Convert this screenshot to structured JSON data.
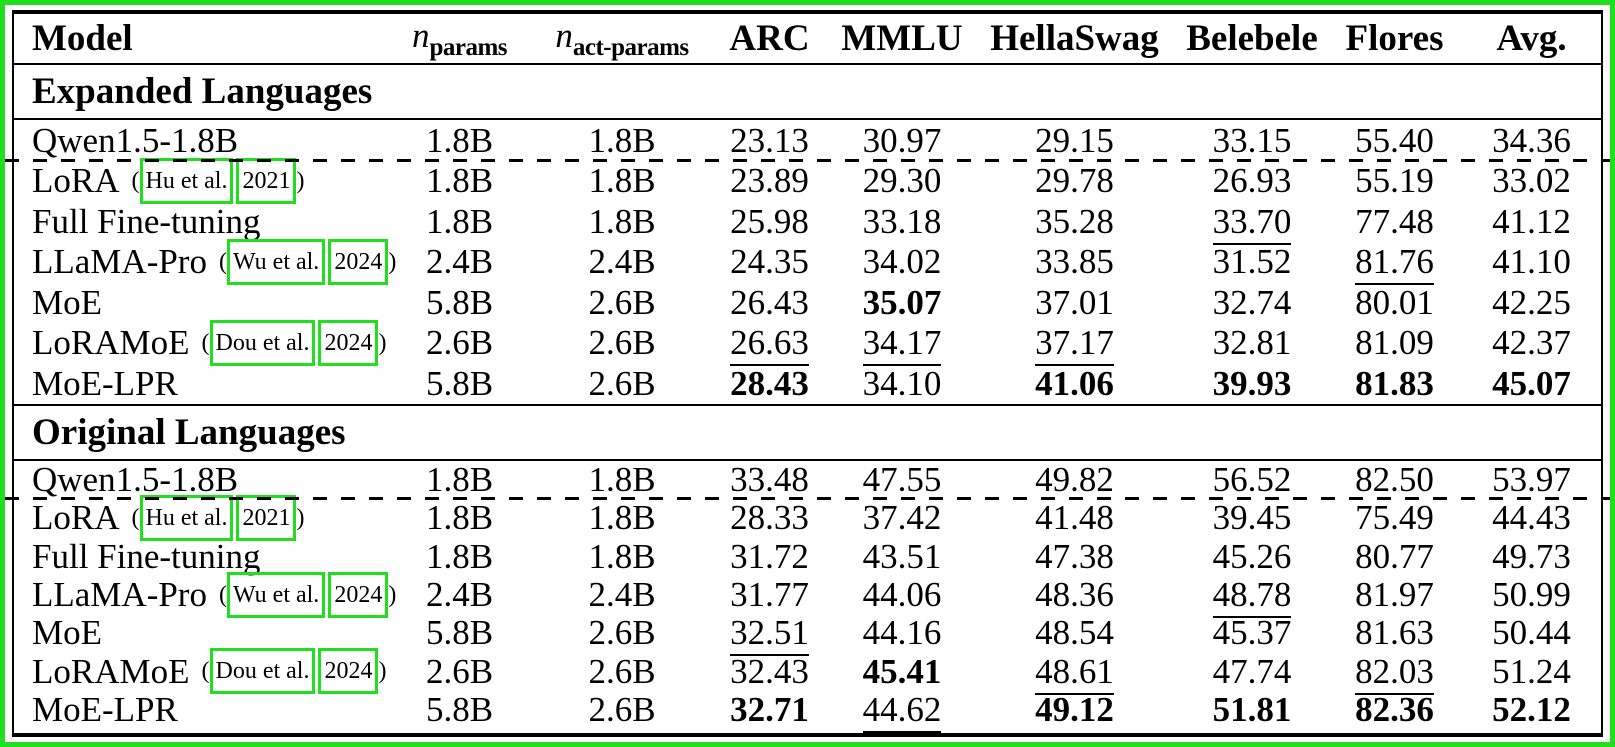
{
  "colors": {
    "annotation_green": "#1fdf1f",
    "rule_black": "#000000",
    "text_black": "#000000",
    "background_white": "#ffffff"
  },
  "table": {
    "columns": [
      {
        "key": "model",
        "label": "Model",
        "type": "text"
      },
      {
        "key": "n_params",
        "math_main": "n",
        "math_sub": "params",
        "type": "math"
      },
      {
        "key": "n_act_params",
        "math_main": "n",
        "math_sub": "act-params",
        "type": "math"
      },
      {
        "key": "arc",
        "label": "ARC",
        "type": "metric"
      },
      {
        "key": "mmlu",
        "label": "MMLU",
        "type": "metric"
      },
      {
        "key": "hellaswag",
        "label": "HellaSwag",
        "type": "metric"
      },
      {
        "key": "belebele",
        "label": "Belebele",
        "type": "metric"
      },
      {
        "key": "flores",
        "label": "Flores",
        "type": "metric"
      },
      {
        "key": "avg",
        "label": "Avg.",
        "type": "metric"
      }
    ],
    "style_legend": {
      "p": "plain",
      "b": "bold",
      "u": "underline"
    },
    "sections": [
      {
        "title": "Expanded Languages",
        "rows": [
          {
            "model": "Qwen1.5-1.8B",
            "citation": null,
            "n_params": "1.8B",
            "n_act_params": "1.8B",
            "values": [
              "23.13",
              "30.97",
              "29.15",
              "33.15",
              "55.40",
              "34.36"
            ],
            "styles": [
              "p",
              "p",
              "p",
              "p",
              "p",
              "p"
            ],
            "dashed_above": false
          },
          {
            "model": "LoRA",
            "citation": {
              "open": "(",
              "boxes": [
                "Hu et al.",
                "2021"
              ],
              "close": ")"
            },
            "n_params": "1.8B",
            "n_act_params": "1.8B",
            "values": [
              "23.89",
              "29.30",
              "29.78",
              "26.93",
              "55.19",
              "33.02"
            ],
            "styles": [
              "p",
              "p",
              "p",
              "p",
              "p",
              "p"
            ],
            "dashed_above": true
          },
          {
            "model": "Full Fine-tuning",
            "citation": null,
            "n_params": "1.8B",
            "n_act_params": "1.8B",
            "values": [
              "25.98",
              "33.18",
              "35.28",
              "33.70",
              "77.48",
              "41.12"
            ],
            "styles": [
              "p",
              "p",
              "p",
              "u",
              "p",
              "p"
            ],
            "dashed_above": false
          },
          {
            "model": "LLaMA-Pro",
            "citation": {
              "open": "(",
              "boxes": [
                "Wu et al.",
                "2024"
              ],
              "close": ")"
            },
            "n_params": "2.4B",
            "n_act_params": "2.4B",
            "values": [
              "24.35",
              "34.02",
              "33.85",
              "31.52",
              "81.76",
              "41.10"
            ],
            "styles": [
              "p",
              "p",
              "p",
              "p",
              "u",
              "p"
            ],
            "dashed_above": false
          },
          {
            "model": "MoE",
            "citation": null,
            "n_params": "5.8B",
            "n_act_params": "2.6B",
            "values": [
              "26.43",
              "35.07",
              "37.01",
              "32.74",
              "80.01",
              "42.25"
            ],
            "styles": [
              "p",
              "b",
              "p",
              "p",
              "p",
              "p"
            ],
            "dashed_above": false
          },
          {
            "model": "LoRAMoE",
            "citation": {
              "open": "(",
              "boxes": [
                "Dou et al.",
                "2024"
              ],
              "close": ")"
            },
            "n_params": "2.6B",
            "n_act_params": "2.6B",
            "values": [
              "26.63",
              "34.17",
              "37.17",
              "32.81",
              "81.09",
              "42.37"
            ],
            "styles": [
              "u",
              "u",
              "u",
              "p",
              "p",
              "p"
            ],
            "dashed_above": false
          },
          {
            "model": "MoE-LPR",
            "citation": null,
            "n_params": "5.8B",
            "n_act_params": "2.6B",
            "values": [
              "28.43",
              "34.10",
              "41.06",
              "39.93",
              "81.83",
              "45.07"
            ],
            "styles": [
              "b",
              "p",
              "b",
              "b",
              "b",
              "b"
            ],
            "dashed_above": false
          }
        ]
      },
      {
        "title": "Original Languages",
        "rows": [
          {
            "model": "Qwen1.5-1.8B",
            "citation": null,
            "n_params": "1.8B",
            "n_act_params": "1.8B",
            "values": [
              "33.48",
              "47.55",
              "49.82",
              "56.52",
              "82.50",
              "53.97"
            ],
            "styles": [
              "p",
              "p",
              "p",
              "p",
              "p",
              "p"
            ],
            "dashed_above": false
          },
          {
            "model": "LoRA",
            "citation": {
              "open": "(",
              "boxes": [
                "Hu et al.",
                "2021"
              ],
              "close": ")"
            },
            "n_params": "1.8B",
            "n_act_params": "1.8B",
            "values": [
              "28.33",
              "37.42",
              "41.48",
              "39.45",
              "75.49",
              "44.43"
            ],
            "styles": [
              "p",
              "p",
              "p",
              "p",
              "p",
              "p"
            ],
            "dashed_above": true
          },
          {
            "model": "Full Fine-tuning",
            "citation": null,
            "n_params": "1.8B",
            "n_act_params": "1.8B",
            "values": [
              "31.72",
              "43.51",
              "47.38",
              "45.26",
              "80.77",
              "49.73"
            ],
            "styles": [
              "p",
              "p",
              "p",
              "p",
              "p",
              "p"
            ],
            "dashed_above": false
          },
          {
            "model": "LLaMA-Pro",
            "citation": {
              "open": "(",
              "boxes": [
                "Wu et al.",
                "2024"
              ],
              "close": ")"
            },
            "n_params": "2.4B",
            "n_act_params": "2.4B",
            "values": [
              "31.77",
              "44.06",
              "48.36",
              "48.78",
              "81.97",
              "50.99"
            ],
            "styles": [
              "p",
              "p",
              "p",
              "u",
              "p",
              "p"
            ],
            "dashed_above": false
          },
          {
            "model": "MoE",
            "citation": null,
            "n_params": "5.8B",
            "n_act_params": "2.6B",
            "values": [
              "32.51",
              "44.16",
              "48.54",
              "45.37",
              "81.63",
              "50.44"
            ],
            "styles": [
              "u",
              "p",
              "p",
              "p",
              "p",
              "p"
            ],
            "dashed_above": false
          },
          {
            "model": "LoRAMoE",
            "citation": {
              "open": "(",
              "boxes": [
                "Dou et al.",
                "2024"
              ],
              "close": ")"
            },
            "n_params": "2.6B",
            "n_act_params": "2.6B",
            "values": [
              "32.43",
              "45.41",
              "48.61",
              "47.74",
              "82.03",
              "51.24"
            ],
            "styles": [
              "p",
              "b",
              "u",
              "p",
              "u",
              "p"
            ],
            "dashed_above": false
          },
          {
            "model": "MoE-LPR",
            "citation": null,
            "n_params": "5.8B",
            "n_act_params": "2.6B",
            "values": [
              "32.71",
              "44.62",
              "49.12",
              "51.81",
              "82.36",
              "52.12"
            ],
            "styles": [
              "b",
              "u",
              "b",
              "b",
              "b",
              "b"
            ],
            "dashed_above": false
          }
        ]
      }
    ]
  }
}
